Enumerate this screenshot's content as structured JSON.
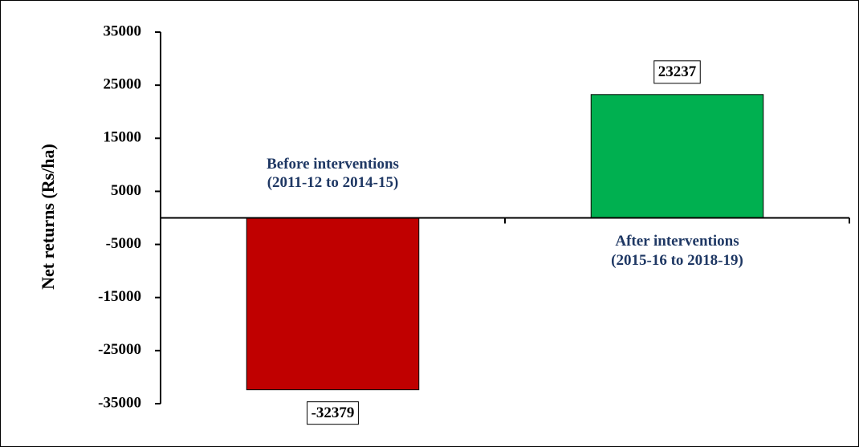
{
  "chart_data": {
    "type": "bar",
    "y_label": "Net returns (Rs/ha)",
    "categories": [
      [
        "Before interventions",
        "(2011-12 to 2014-15)"
      ],
      [
        "After interventions",
        "(2015-16 to 2018-19)"
      ]
    ],
    "values": [
      -32379,
      23237
    ],
    "colors": [
      "#c00000",
      "#00b050"
    ],
    "ylim": [
      -35000,
      35000
    ],
    "yticks": [
      -35000,
      -25000,
      -15000,
      -5000,
      5000,
      15000,
      25000,
      35000
    ],
    "grid": false
  }
}
